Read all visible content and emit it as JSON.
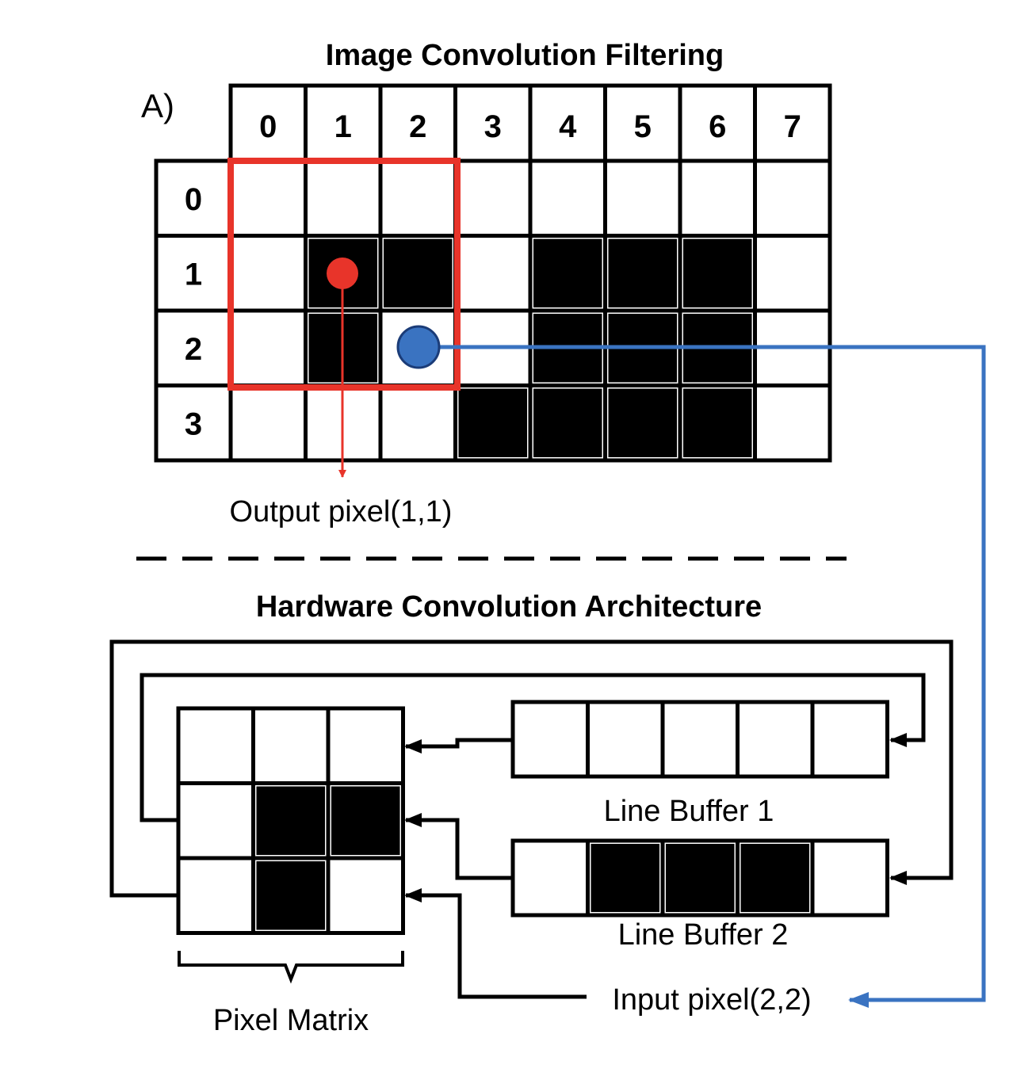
{
  "diagram": {
    "part_label": "A)",
    "top": {
      "title": "Image Convolution Filtering",
      "col_headers": [
        "0",
        "1",
        "2",
        "3",
        "4",
        "5",
        "6",
        "7"
      ],
      "row_headers": [
        "0",
        "1",
        "2",
        "3"
      ],
      "pixels": [
        [
          0,
          0,
          0,
          0,
          0,
          0,
          0,
          0
        ],
        [
          0,
          1,
          1,
          0,
          1,
          1,
          1,
          0
        ],
        [
          0,
          1,
          0,
          0,
          1,
          1,
          1,
          0
        ],
        [
          0,
          0,
          0,
          1,
          1,
          1,
          1,
          0
        ]
      ],
      "output_label": "Output pixel(1,1)"
    },
    "bottom": {
      "title": "Hardware Convolution Architecture",
      "pixel_matrix": [
        [
          0,
          0,
          0
        ],
        [
          0,
          1,
          1
        ],
        [
          0,
          1,
          0
        ]
      ],
      "pixel_matrix_label": "Pixel Matrix",
      "line_buffer_1": [
        0,
        0,
        0,
        0,
        0
      ],
      "line_buffer_1_label": "Line Buffer 1",
      "line_buffer_2": [
        0,
        1,
        1,
        1,
        0
      ],
      "line_buffer_2_label": "Line Buffer 2",
      "input_label": "Input pixel(2,2)"
    },
    "colors": {
      "kernel_window": "#e8342a",
      "input_link": "#3a73c1",
      "dark_pixel": "#000000",
      "light_pixel": "#ffffff"
    }
  }
}
